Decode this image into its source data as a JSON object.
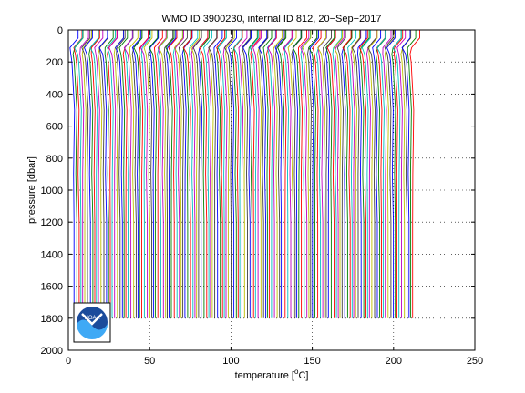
{
  "chart_data": {
    "type": "line",
    "title": "WMO ID 3900230, internal ID 812, 20−Sep−2017",
    "xlabel_prefix": "temperature [",
    "xlabel_unit": "o",
    "xlabel_suffix": "C]",
    "ylabel": "pressure [dbar]",
    "xlim": [
      0,
      250
    ],
    "ylim": [
      0,
      2000
    ],
    "y_reversed": true,
    "grid": "dotted",
    "xticks": [
      "0",
      "50",
      "100",
      "150",
      "200",
      "250"
    ],
    "yticks": [
      "0",
      "200",
      "400",
      "600",
      "800",
      "1000",
      "1200",
      "1400",
      "1600",
      "1800",
      "2000"
    ],
    "series_colors": [
      "#0000ff",
      "#008000",
      "#ff0000",
      "#00bfbf",
      "#bf00bf",
      "#bfbf00",
      "#404040"
    ],
    "profile_count": 150,
    "profile_offset_step": 1.4,
    "first_profile_surface_temp": 6,
    "profile_bottom_pressure": 1800,
    "profile_deep_temp_offset": -2.5,
    "logo_text": "NOAA"
  }
}
